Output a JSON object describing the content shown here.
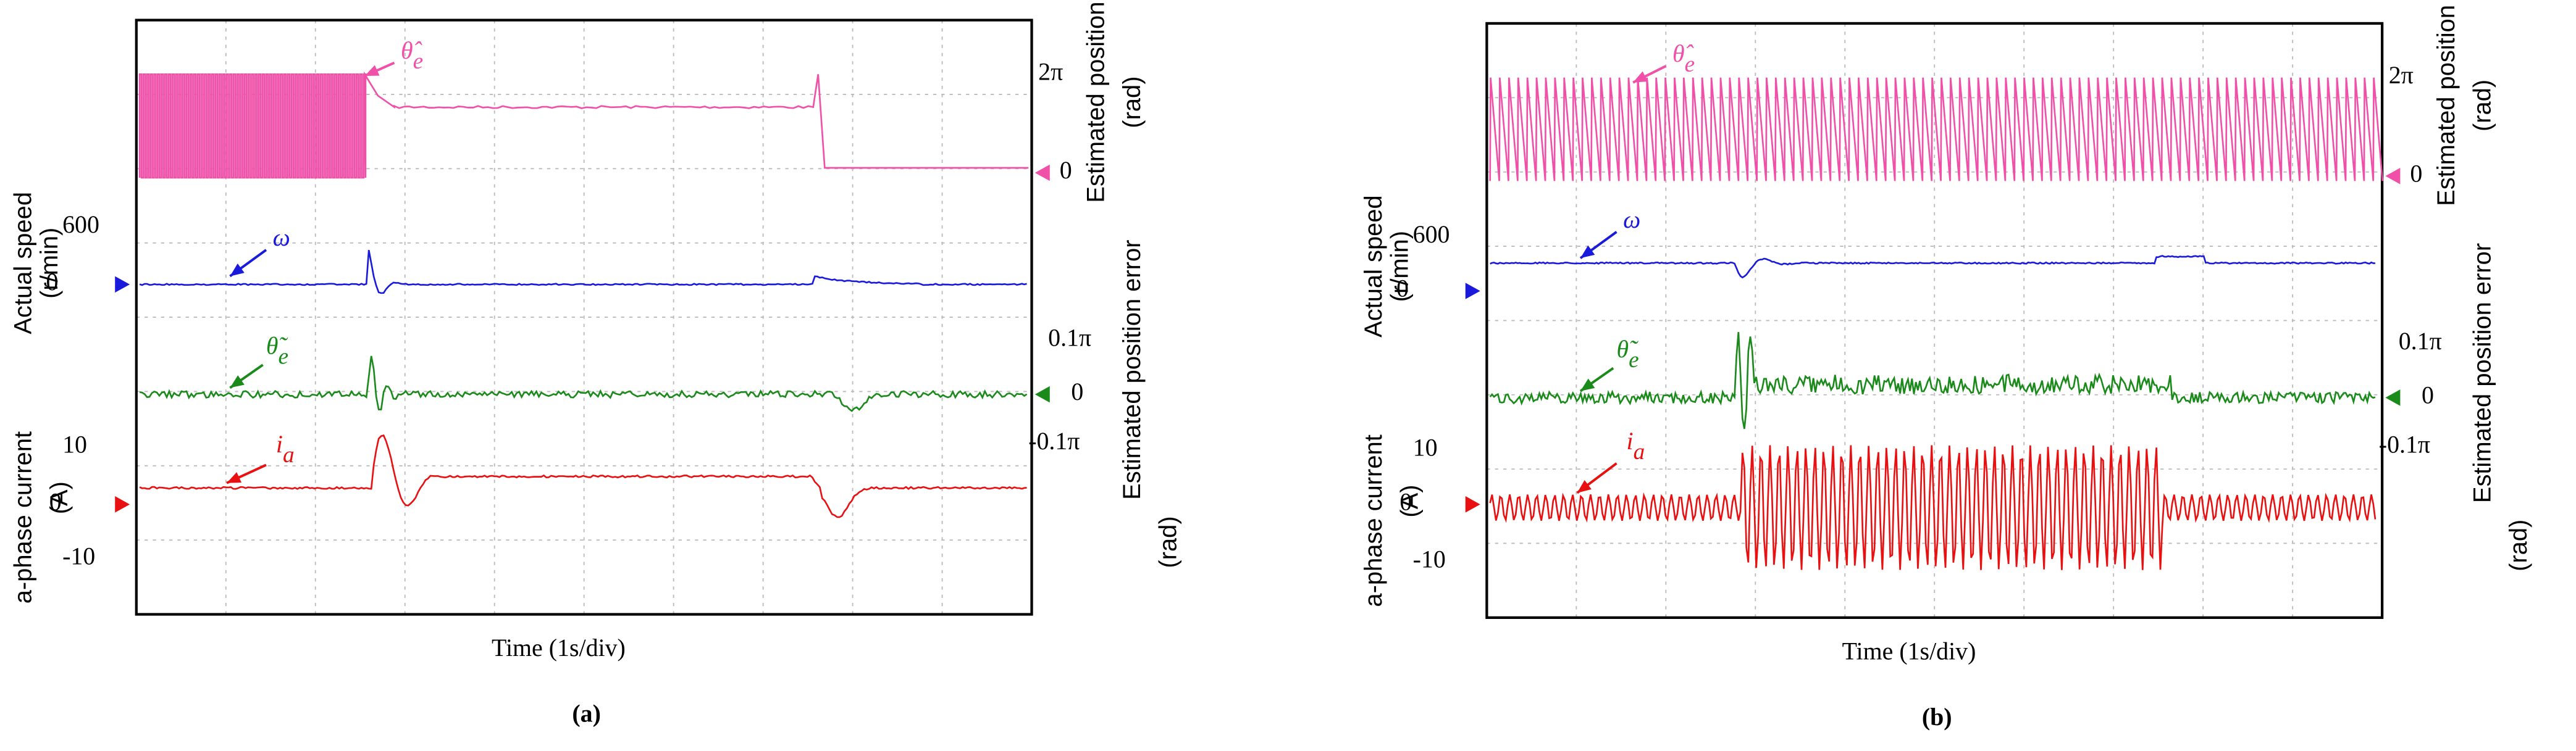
{
  "panels": [
    {
      "label": "(a)",
      "x_label": "Time (1s/div)",
      "position": {
        "title": "Estimated position",
        "unit": "(rad)",
        "top_tick": "2π",
        "zero_tick": "0",
        "symbol": "θ̂",
        "subscript": "e"
      },
      "speed": {
        "title": "Actual speed",
        "unit": "(r/min)",
        "top_tick": "600",
        "zero_tick": "0",
        "symbol": "ω"
      },
      "error": {
        "title": "Estimated position error",
        "unit": "(rad)",
        "top_tick": "0.1π",
        "zero_tick": "0",
        "bottom_tick": "-0.1π",
        "symbol": "θ̃",
        "subscript": "e"
      },
      "current": {
        "title": "a-phase current",
        "unit": "(A)",
        "top_tick": "10",
        "zero_tick": "0",
        "bottom_tick": "-10",
        "symbol": "i",
        "subscript": "a"
      }
    },
    {
      "label": "(b)",
      "x_label": "Time (1s/div)",
      "position": {
        "title": "Estimated position",
        "unit": "(rad)",
        "top_tick": "2π",
        "zero_tick": "0",
        "symbol": "θ̂",
        "subscript": "e"
      },
      "speed": {
        "title": "Actual speed",
        "unit": "(r/min)",
        "top_tick": "600",
        "zero_tick": "0",
        "symbol": "ω"
      },
      "error": {
        "title": "Estimated position error",
        "unit": "(rad)",
        "top_tick": "0.1π",
        "zero_tick": "0",
        "bottom_tick": "-0.1π",
        "symbol": "θ̃",
        "subscript": "e"
      },
      "current": {
        "title": "a-phase current",
        "unit": "(A)",
        "top_tick": "10",
        "zero_tick": "0",
        "bottom_tick": "-10",
        "symbol": "i",
        "subscript": "a"
      }
    }
  ]
}
